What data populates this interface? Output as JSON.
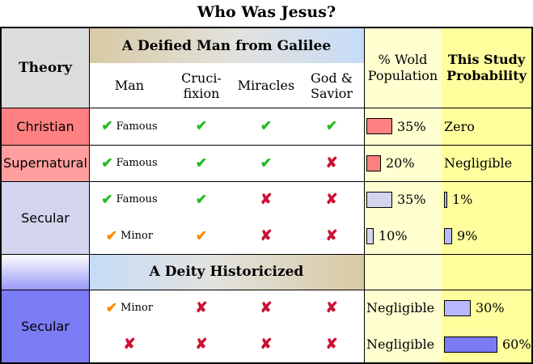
{
  "title": "Who Was Jesus?",
  "headers": {
    "theory": "Theory",
    "group_top": "A Deified Man from Galilee",
    "group_bottom": "A Deity Historicized",
    "col_man": "Man",
    "col_cruci_1": "Cruci-",
    "col_cruci_2": "fixion",
    "col_miracles": "Miracles",
    "col_god_1": "God &",
    "col_god_2": "Savior",
    "col_pop_1": "% Wold",
    "col_pop_2": "Population",
    "col_prob_1": "This Study",
    "col_prob_2": "Probability"
  },
  "rows": [
    {
      "theory": "Christian",
      "man": "check",
      "man_label": "Famous",
      "cruci": "check",
      "miracles": "check",
      "god": "check",
      "pop_label": "35%",
      "pop_value": 35,
      "prob_label": "Zero"
    },
    {
      "theory": "Supernatural",
      "man": "check",
      "man_label": "Famous",
      "cruci": "check",
      "miracles": "check",
      "god": "cross",
      "pop_label": "20%",
      "pop_value": 20,
      "prob_label": "Negligible"
    },
    {
      "theory": "Secular",
      "man": "check",
      "man_label": "Famous",
      "cruci": "check",
      "miracles": "cross",
      "god": "cross",
      "pop_label": "35%",
      "pop_value": 35,
      "prob_label": "1%",
      "prob_value": 1
    },
    {
      "theory": "",
      "man": "check-orange",
      "man_label": "Minor",
      "cruci": "check-orange",
      "miracles": "cross",
      "god": "cross",
      "pop_label": "10%",
      "pop_value": 10,
      "prob_label": "9%",
      "prob_value": 9
    },
    {
      "theory": "Secular",
      "man": "check-orange",
      "man_label": "Minor",
      "cruci": "cross",
      "miracles": "cross",
      "god": "cross",
      "pop_label": "Negligible",
      "prob_label": "30%",
      "prob_value": 30
    },
    {
      "theory": "",
      "man": "cross",
      "man_label": "",
      "cruci": "cross",
      "miracles": "cross",
      "god": "cross",
      "pop_label": "Negligible",
      "prob_label": "60%",
      "prob_value": 60
    }
  ],
  "symbols": {
    "check": "✔",
    "cross": "✘"
  },
  "colors": {
    "christian": "#ff8080",
    "supernatural": "#ff9e9e",
    "secular_light": "#d4d4ee",
    "secular_dark": "#7b7bf5",
    "bar_fill_dark": "#7b7bf5",
    "bar_fill_light": "#b8b8ff"
  }
}
